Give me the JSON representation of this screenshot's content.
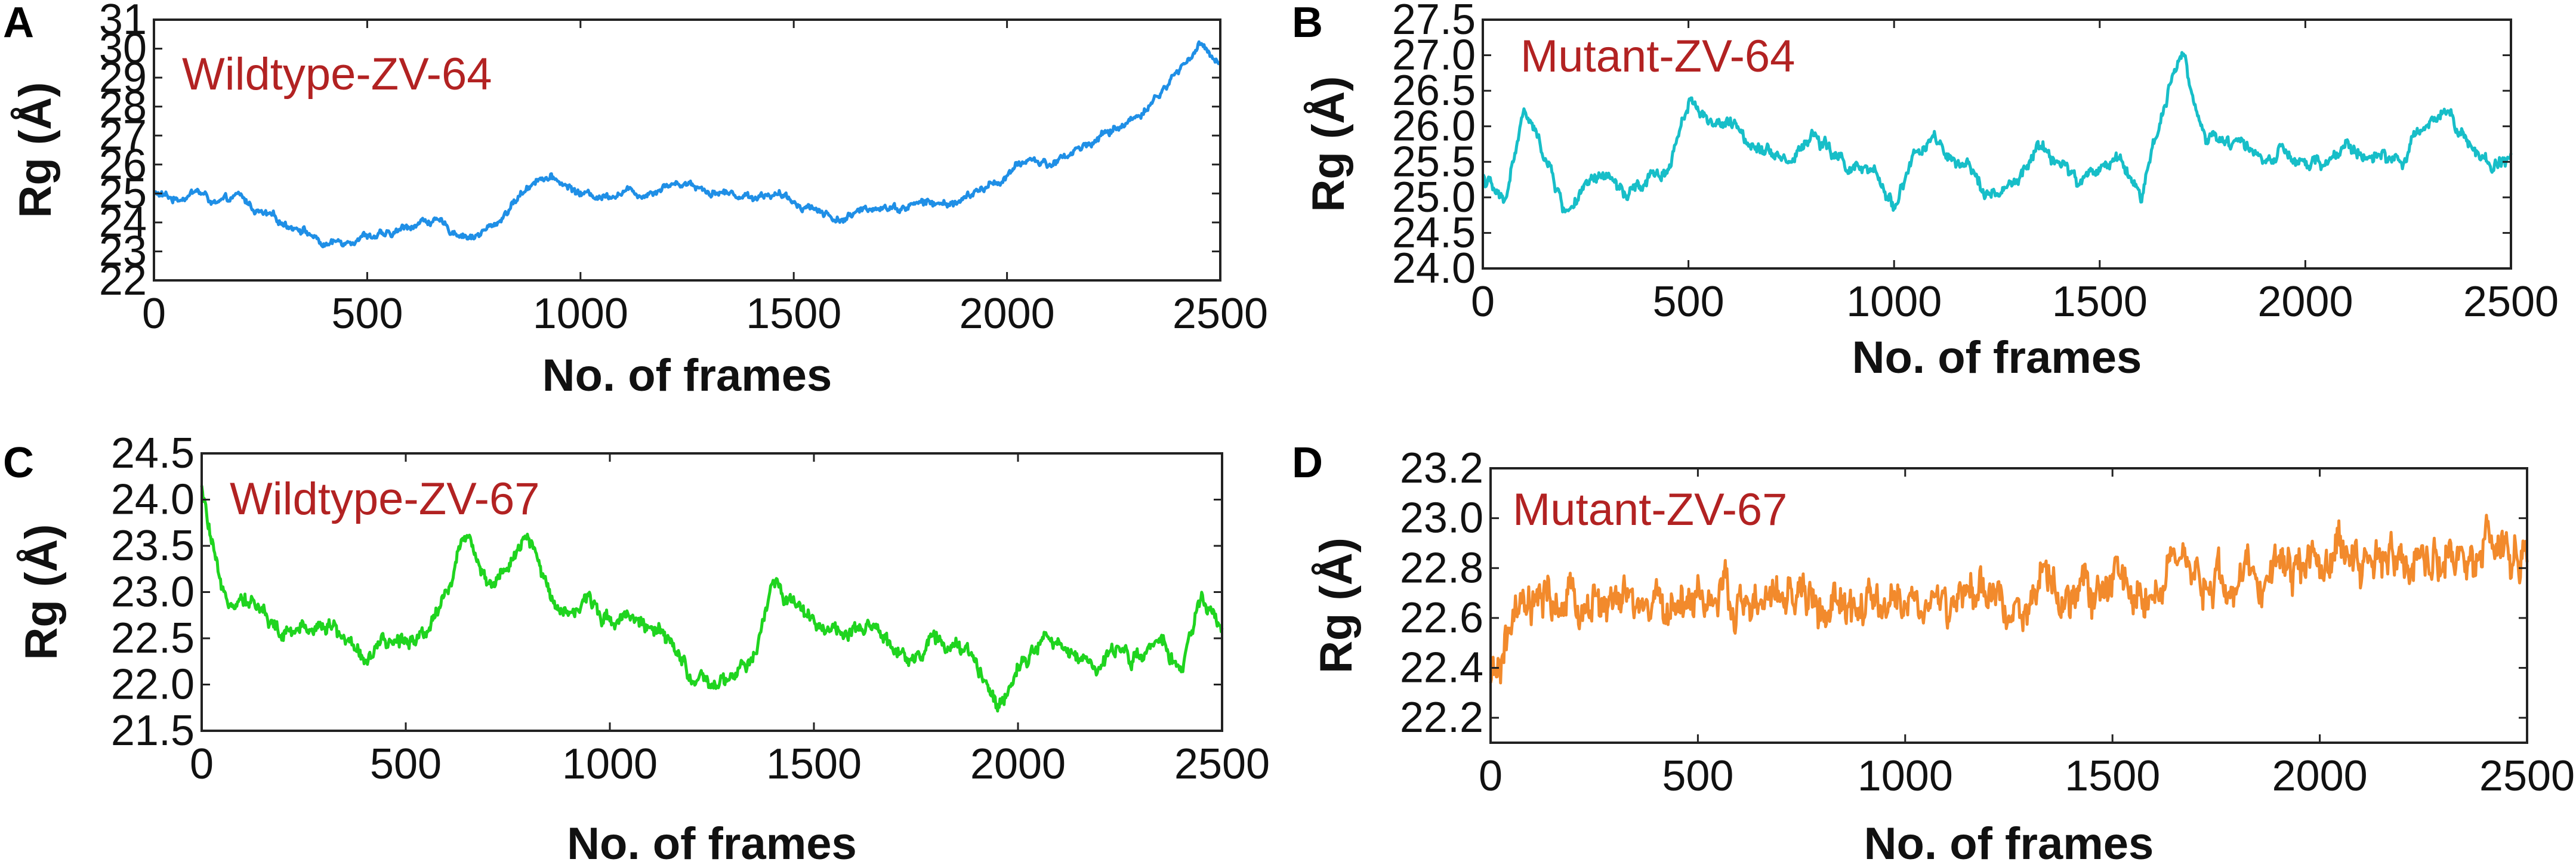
{
  "figure": {
    "panels": [
      {
        "letter": "A"
      },
      {
        "letter": "B"
      },
      {
        "letter": "C"
      },
      {
        "letter": "D"
      }
    ]
  },
  "chart_data": [
    {
      "panel": "A",
      "type": "line",
      "title": "Wildtype-ZV-64",
      "title_color": "#b22222",
      "xlabel": "No. of frames",
      "ylabel": "Rg (Å)",
      "xlim": [
        0,
        2500
      ],
      "ylim": [
        22,
        31
      ],
      "xticks": [
        0,
        500,
        1000,
        1500,
        2000,
        2500
      ],
      "yticks": [
        22,
        23,
        24,
        25,
        26,
        27,
        28,
        29,
        30,
        31
      ],
      "xtick_labels": [
        "0",
        "500",
        "1000",
        "1500",
        "2000",
        "2500"
      ],
      "ytick_labels": [
        "22",
        "23",
        "24",
        "25",
        "26",
        "27",
        "28",
        "29",
        "30",
        "31"
      ],
      "series": [
        {
          "name": "Wildtype-ZV-64",
          "color": "#1f8fe6",
          "noise": 0.25,
          "x": [
            0,
            50,
            100,
            150,
            200,
            250,
            300,
            350,
            400,
            450,
            500,
            550,
            600,
            650,
            700,
            750,
            800,
            850,
            900,
            950,
            1000,
            1050,
            1100,
            1150,
            1200,
            1250,
            1300,
            1350,
            1400,
            1450,
            1500,
            1550,
            1600,
            1650,
            1700,
            1750,
            1800,
            1850,
            1900,
            1950,
            2000,
            2050,
            2100,
            2150,
            2200,
            2250,
            2300,
            2350,
            2400,
            2450,
            2500
          ],
          "y": [
            25.0,
            24.8,
            25.1,
            24.6,
            24.9,
            24.3,
            24.0,
            23.8,
            23.2,
            23.4,
            23.6,
            23.5,
            23.9,
            24.1,
            23.7,
            23.5,
            23.9,
            24.8,
            25.6,
            25.4,
            25.0,
            24.9,
            25.1,
            25.0,
            25.3,
            25.4,
            25.1,
            25.0,
            24.9,
            25.0,
            24.7,
            24.5,
            24.1,
            24.3,
            24.6,
            24.5,
            24.7,
            24.6,
            24.8,
            25.2,
            25.6,
            26.2,
            26.0,
            26.4,
            26.8,
            27.2,
            27.6,
            28.3,
            29.2,
            30.1,
            29.6
          ]
        }
      ]
    },
    {
      "panel": "B",
      "type": "line",
      "title": "Mutant-ZV-64",
      "title_color": "#b22222",
      "xlabel": "No. of frames",
      "ylabel": "Rg (Å)",
      "xlim": [
        0,
        2500
      ],
      "ylim": [
        24.0,
        27.5
      ],
      "xticks": [
        0,
        500,
        1000,
        1500,
        2000,
        2500
      ],
      "yticks": [
        24.0,
        24.5,
        25.0,
        25.5,
        26.0,
        26.5,
        27.0,
        27.5
      ],
      "xtick_labels": [
        "0",
        "500",
        "1000",
        "1500",
        "2000",
        "2500"
      ],
      "ytick_labels": [
        "24.0",
        "24.5",
        "25.0",
        "25.5",
        "26.0",
        "26.5",
        "27.0",
        "27.5"
      ],
      "series": [
        {
          "name": "Mutant-ZV-64",
          "color": "#17bec8",
          "noise": 0.18,
          "x": [
            0,
            50,
            100,
            150,
            200,
            250,
            300,
            350,
            400,
            450,
            500,
            550,
            600,
            650,
            700,
            750,
            800,
            850,
            900,
            950,
            1000,
            1050,
            1100,
            1150,
            1200,
            1250,
            1300,
            1350,
            1400,
            1450,
            1500,
            1550,
            1600,
            1650,
            1700,
            1750,
            1800,
            1850,
            1900,
            1950,
            2000,
            2050,
            2100,
            2150,
            2200,
            2250,
            2300,
            2350,
            2400,
            2450,
            2500
          ],
          "y": [
            25.3,
            24.9,
            26.2,
            25.6,
            24.8,
            25.1,
            25.3,
            25.0,
            25.2,
            25.4,
            26.4,
            26.1,
            26.0,
            25.8,
            25.7,
            25.5,
            25.9,
            25.6,
            25.4,
            25.3,
            24.9,
            25.6,
            25.8,
            25.4,
            25.3,
            25.0,
            25.2,
            25.7,
            25.5,
            25.2,
            25.4,
            25.6,
            25.0,
            26.2,
            27.1,
            25.9,
            25.7,
            25.8,
            25.5,
            25.6,
            25.4,
            25.5,
            25.7,
            25.6,
            25.5,
            25.6,
            26.1,
            26.3,
            25.7,
            25.4,
            25.6
          ]
        }
      ]
    },
    {
      "panel": "C",
      "type": "line",
      "title": "Wildtype-ZV-67",
      "title_color": "#b22222",
      "xlabel": "No. of frames",
      "ylabel": "Rg (Å)",
      "xlim": [
        0,
        2500
      ],
      "ylim": [
        21.5,
        24.5
      ],
      "xticks": [
        0,
        500,
        1000,
        1500,
        2000,
        2500
      ],
      "yticks": [
        21.5,
        22.0,
        22.5,
        23.0,
        23.5,
        24.0,
        24.5
      ],
      "xtick_labels": [
        "0",
        "500",
        "1000",
        "1500",
        "2000",
        "2500"
      ],
      "ytick_labels": [
        "21.5",
        "22.0",
        "22.5",
        "23.0",
        "23.5",
        "24.0",
        "24.5"
      ],
      "series": [
        {
          "name": "Wildtype-ZV-67",
          "color": "#1fd41f",
          "noise": 0.16,
          "x": [
            0,
            50,
            100,
            150,
            200,
            250,
            300,
            350,
            400,
            450,
            500,
            550,
            600,
            650,
            700,
            750,
            800,
            850,
            900,
            950,
            1000,
            1050,
            1100,
            1150,
            1200,
            1250,
            1300,
            1350,
            1400,
            1450,
            1500,
            1550,
            1600,
            1650,
            1700,
            1750,
            1800,
            1850,
            1900,
            1950,
            2000,
            2050,
            2100,
            2150,
            2200,
            2250,
            2300,
            2350,
            2400,
            2450,
            2500
          ],
          "y": [
            24.1,
            22.9,
            23.0,
            22.8,
            22.5,
            22.6,
            22.7,
            22.5,
            22.3,
            22.4,
            22.5,
            22.6,
            23.0,
            23.7,
            23.1,
            23.2,
            23.6,
            23.0,
            22.8,
            22.9,
            22.7,
            22.8,
            22.6,
            22.4,
            22.1,
            21.9,
            22.1,
            22.2,
            23.1,
            22.9,
            22.7,
            22.6,
            22.5,
            22.6,
            22.4,
            22.3,
            22.5,
            22.4,
            22.2,
            21.8,
            22.2,
            22.5,
            22.4,
            22.3,
            22.2,
            22.4,
            22.3,
            22.4,
            22.2,
            22.9,
            22.6
          ]
        }
      ]
    },
    {
      "panel": "D",
      "type": "line",
      "title": "Mutant-ZV-67",
      "title_color": "#b22222",
      "xlabel": "No. of frames",
      "ylabel": "Rg (Å)",
      "xlim": [
        0,
        2500
      ],
      "ylim": [
        22.1,
        23.2
      ],
      "xticks": [
        0,
        500,
        1000,
        1500,
        2000,
        2500
      ],
      "yticks": [
        22.2,
        22.4,
        22.6,
        22.8,
        23.0,
        23.2
      ],
      "xtick_labels": [
        "0",
        "500",
        "1000",
        "1500",
        "2000",
        "2500"
      ],
      "ytick_labels": [
        "22.2",
        "22.4",
        "22.6",
        "22.8",
        "23.0",
        "23.2"
      ],
      "series": [
        {
          "name": "Mutant-ZV-67",
          "color": "#f28a2c",
          "noise": 0.16,
          "x": [
            0,
            50,
            100,
            150,
            200,
            250,
            300,
            350,
            400,
            450,
            500,
            550,
            600,
            650,
            700,
            750,
            800,
            850,
            900,
            950,
            1000,
            1050,
            1100,
            1150,
            1200,
            1250,
            1300,
            1350,
            1400,
            1450,
            1500,
            1550,
            1600,
            1650,
            1700,
            1750,
            1800,
            1850,
            1900,
            1950,
            2000,
            2050,
            2100,
            2150,
            2200,
            2250,
            2300,
            2350,
            2400,
            2450,
            2500
          ],
          "y": [
            22.3,
            22.55,
            22.62,
            22.65,
            22.63,
            22.66,
            22.65,
            22.62,
            22.64,
            22.66,
            22.7,
            22.66,
            22.65,
            22.64,
            22.66,
            22.7,
            22.62,
            22.63,
            22.62,
            22.64,
            22.66,
            22.67,
            22.65,
            22.66,
            22.68,
            22.66,
            22.67,
            22.69,
            22.7,
            22.72,
            22.71,
            22.73,
            22.74,
            22.76,
            22.72,
            22.75,
            22.74,
            22.73,
            22.82,
            22.83,
            22.84,
            22.85,
            22.86,
            22.84,
            22.85,
            22.83,
            22.86,
            22.85,
            22.87,
            22.86,
            22.82
          ]
        }
      ]
    }
  ]
}
